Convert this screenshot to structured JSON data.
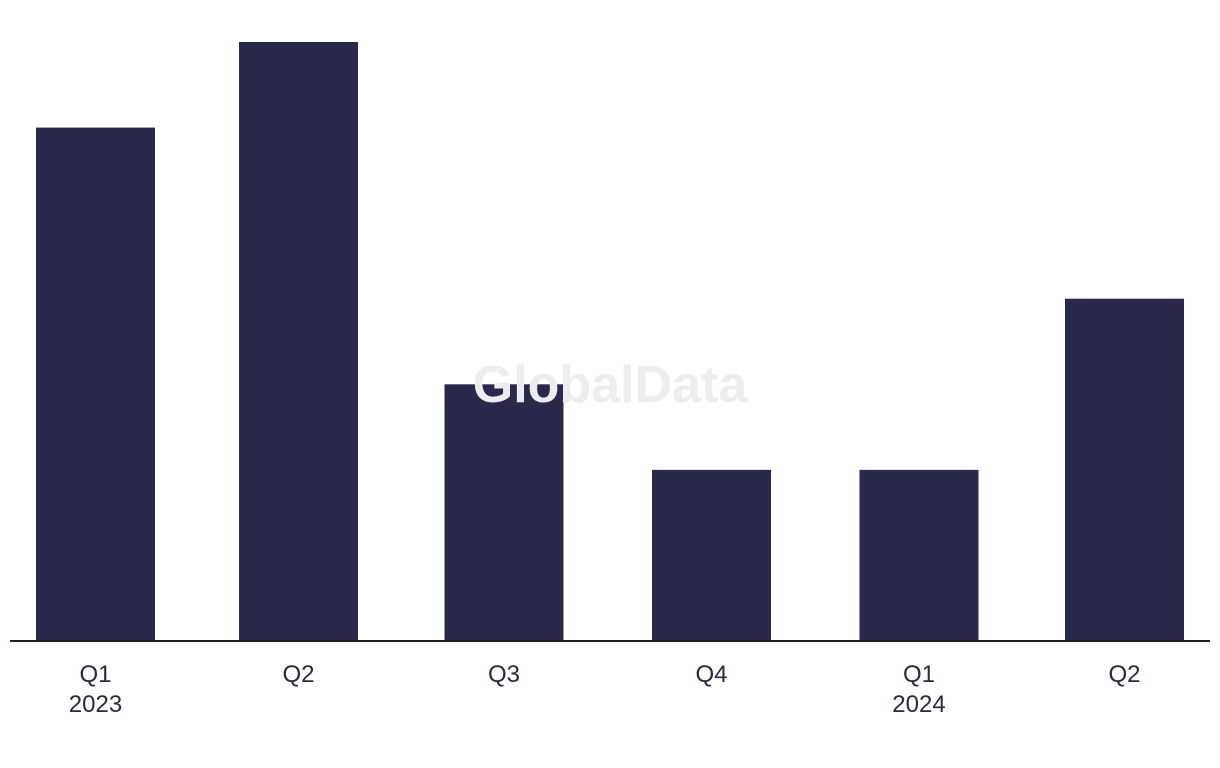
{
  "watermark": "GlobalData",
  "colors": {
    "bar": "#29294b",
    "axis": "#1f1f2e",
    "label": "#2a2a40",
    "watermark": "#ededf0",
    "background": "#ffffff"
  },
  "chart_data": {
    "type": "bar",
    "title": "",
    "xlabel": "",
    "ylabel": "",
    "categories": [
      {
        "quarter": "Q1",
        "year": "2023"
      },
      {
        "quarter": "Q2",
        "year": ""
      },
      {
        "quarter": "Q3",
        "year": ""
      },
      {
        "quarter": "Q4",
        "year": ""
      },
      {
        "quarter": "Q1",
        "year": "2024"
      },
      {
        "quarter": "Q2",
        "year": ""
      }
    ],
    "values": [
      6,
      7,
      3,
      2,
      2,
      4
    ],
    "ylim": [
      0,
      7
    ],
    "grid": false,
    "legend": "none"
  }
}
